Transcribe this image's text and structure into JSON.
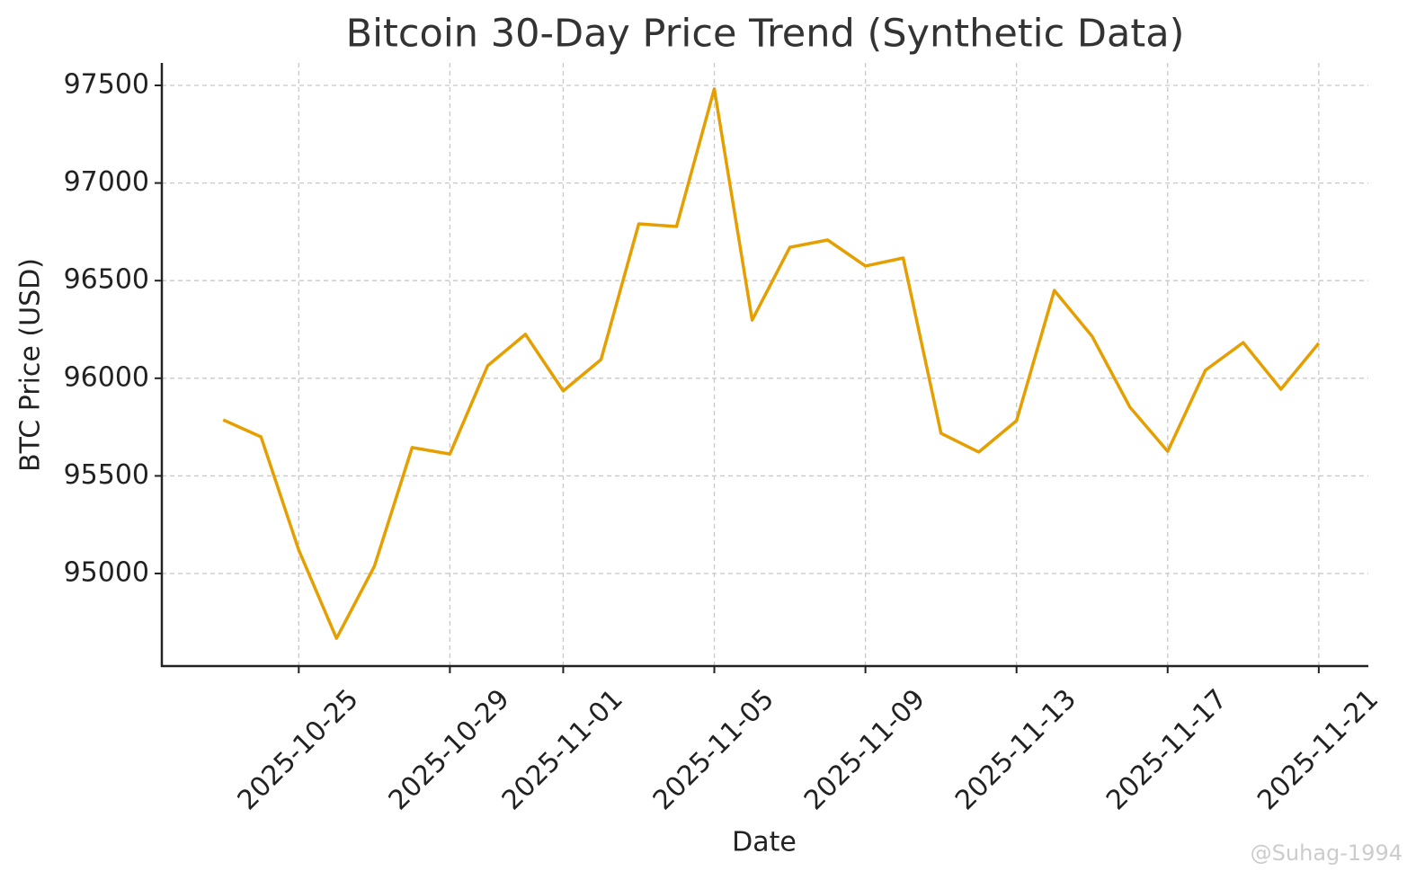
{
  "chart_data": {
    "type": "line",
    "title": "Bitcoin 30-Day Price Trend (Synthetic Data)",
    "x_label": "Date",
    "y_label": "BTC Price (USD)",
    "watermark": "@Suhag-1994",
    "x": [
      "2025-10-23",
      "2025-10-24",
      "2025-10-25",
      "2025-10-26",
      "2025-10-27",
      "2025-10-28",
      "2025-10-29",
      "2025-10-30",
      "2025-10-31",
      "2025-11-01",
      "2025-11-02",
      "2025-11-03",
      "2025-11-04",
      "2025-11-05",
      "2025-11-06",
      "2025-11-07",
      "2025-11-08",
      "2025-11-09",
      "2025-11-10",
      "2025-11-11",
      "2025-11-12",
      "2025-11-13",
      "2025-11-14",
      "2025-11-15",
      "2025-11-16",
      "2025-11-17",
      "2025-11-18",
      "2025-11-19",
      "2025-11-20",
      "2025-11-21"
    ],
    "values": [
      95787,
      95700,
      95120,
      94668,
      95037,
      95645,
      95612,
      96064,
      96225,
      95935,
      96096,
      96791,
      96777,
      97482,
      96298,
      96671,
      96708,
      96575,
      96616,
      95718,
      95622,
      95783,
      96450,
      96215,
      95852,
      95626,
      96041,
      96183,
      95944,
      96179
    ],
    "color": "#e69f00",
    "xlim": [
      "2025-10-21T09:00",
      "2025-11-22T07:30"
    ],
    "xticks": [
      "2025-10-25",
      "2025-10-29",
      "2025-11-01",
      "2025-11-05",
      "2025-11-09",
      "2025-11-13",
      "2025-11-17",
      "2025-11-21"
    ],
    "ylim": [
      94526,
      97615
    ],
    "yticks": [
      95000,
      95500,
      96000,
      96500,
      97000,
      97500
    ],
    "grid": true
  }
}
